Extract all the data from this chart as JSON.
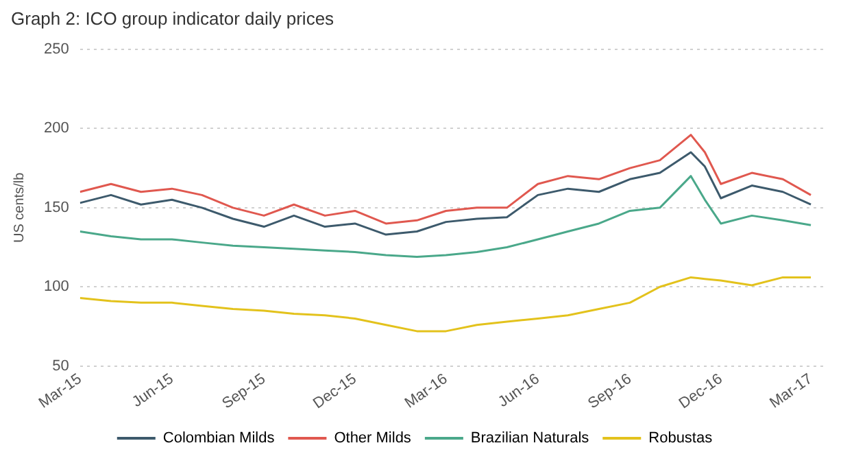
{
  "chart_data": {
    "type": "line",
    "title": "Graph 2: ICO group indicator daily prices",
    "ylabel": "US cents/lb",
    "x": [
      "2015-03-01",
      "2015-04-01",
      "2015-05-01",
      "2015-06-01",
      "2015-07-01",
      "2015-08-01",
      "2015-09-01",
      "2015-10-01",
      "2015-11-01",
      "2015-12-01",
      "2016-01-01",
      "2016-02-01",
      "2016-03-01",
      "2016-04-01",
      "2016-05-01",
      "2016-06-01",
      "2016-07-01",
      "2016-08-01",
      "2016-09-01",
      "2016-10-01",
      "2016-11-01",
      "2016-11-15",
      "2016-12-01",
      "2017-01-01",
      "2017-02-01",
      "2017-03-01"
    ],
    "series": [
      {
        "name": "Colombian Milds",
        "color": "#3d5a6c",
        "values": [
          153,
          158,
          152,
          155,
          150,
          143,
          138,
          145,
          138,
          140,
          133,
          135,
          141,
          143,
          144,
          158,
          162,
          160,
          168,
          172,
          185,
          176,
          156,
          164,
          160,
          152
        ]
      },
      {
        "name": "Other Milds",
        "color": "#e0584f",
        "values": [
          160,
          165,
          160,
          162,
          158,
          150,
          145,
          152,
          145,
          148,
          140,
          142,
          148,
          150,
          150,
          165,
          170,
          168,
          175,
          180,
          196,
          185,
          165,
          172,
          168,
          158
        ]
      },
      {
        "name": "Brazilian Naturals",
        "color": "#4aa88a",
        "values": [
          135,
          132,
          130,
          130,
          128,
          126,
          125,
          124,
          123,
          122,
          120,
          119,
          120,
          122,
          125,
          130,
          135,
          140,
          148,
          150,
          170,
          155,
          140,
          145,
          142,
          139
        ]
      },
      {
        "name": "Robustas",
        "color": "#e3c21c",
        "values": [
          93,
          91,
          90,
          90,
          88,
          86,
          85,
          83,
          82,
          80,
          76,
          72,
          72,
          76,
          78,
          80,
          82,
          86,
          90,
          100,
          106,
          105,
          104,
          101,
          106,
          106
        ]
      }
    ],
    "xlim": [
      "2015-03-01",
      "2017-03-14"
    ],
    "xticks": [
      {
        "value": "2015-03-01",
        "label": "Mar-15"
      },
      {
        "value": "2015-06-01",
        "label": "Jun-15"
      },
      {
        "value": "2015-09-01",
        "label": "Sep-15"
      },
      {
        "value": "2015-12-01",
        "label": "Dec-15"
      },
      {
        "value": "2016-03-01",
        "label": "Mar-16"
      },
      {
        "value": "2016-06-01",
        "label": "Jun-16"
      },
      {
        "value": "2016-09-01",
        "label": "Sep-16"
      },
      {
        "value": "2016-12-01",
        "label": "Dec-16"
      },
      {
        "value": "2017-03-01",
        "label": "Mar-17"
      }
    ],
    "ylim": [
      50,
      250
    ],
    "yticks": [
      50,
      100,
      150,
      200,
      250
    ],
    "grid": "y",
    "legend": "bottom",
    "marker": "none",
    "line_style": "solid"
  }
}
